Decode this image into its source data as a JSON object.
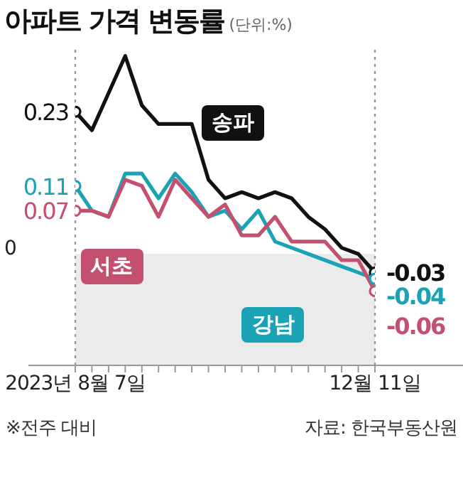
{
  "chart_data": {
    "type": "line",
    "title": "아파트 가격 변동률",
    "subtitle": "(단위:%)",
    "categories": [
      "2023년 8월 7일",
      null,
      null,
      null,
      null,
      null,
      null,
      null,
      null,
      null,
      null,
      null,
      null,
      null,
      null,
      null,
      null,
      null,
      "12월 11일"
    ],
    "series": [
      {
        "name": "송파",
        "color": "#111111",
        "values": [
          0.23,
          0.2,
          0.26,
          0.32,
          0.24,
          0.21,
          0.21,
          0.21,
          0.12,
          0.09,
          0.1,
          0.09,
          0.1,
          0.09,
          0.06,
          0.04,
          0.01,
          0,
          -0.03
        ],
        "value_labels": [
          "0.23",
          null,
          null,
          null,
          null,
          null,
          null,
          null,
          null,
          null,
          null,
          null,
          null,
          null,
          null,
          null,
          null,
          null,
          "-0.03"
        ]
      },
      {
        "name": "강남",
        "color": "#1ba3b5",
        "values": [
          0.11,
          0.07,
          0.06,
          0.13,
          0.13,
          0.09,
          0.13,
          0.1,
          0.06,
          0.07,
          0.04,
          0.07,
          0.02,
          0.01,
          0,
          -0.01,
          -0.02,
          -0.03,
          -0.04
        ],
        "value_labels": [
          "0.11",
          null,
          null,
          null,
          null,
          null,
          null,
          null,
          null,
          null,
          null,
          null,
          null,
          null,
          null,
          null,
          null,
          null,
          "-0.04"
        ]
      },
      {
        "name": "서초",
        "color": "#c4506f",
        "values": [
          0.07,
          0.07,
          0.06,
          0.12,
          0.11,
          0.06,
          0.12,
          0.09,
          0.06,
          0.08,
          0.03,
          0.03,
          0.06,
          0.02,
          0.02,
          0.02,
          -0.01,
          -0.01,
          -0.06
        ],
        "value_labels": [
          "0.07",
          null,
          null,
          null,
          null,
          null,
          null,
          null,
          null,
          null,
          null,
          null,
          null,
          null,
          null,
          null,
          null,
          null,
          "-0.06"
        ]
      }
    ],
    "ylim": [
      -0.18,
      0.33
    ],
    "line_style": "solid",
    "bands": [
      {
        "axis": "y",
        "from": -0.18,
        "to": 0,
        "color": "#ebebeb"
      }
    ],
    "ref_lines": [
      {
        "axis": "x",
        "value": "2023년 8월 7일",
        "line_style": "dotted",
        "color": "#999999"
      },
      {
        "axis": "x",
        "value": "12월 11일",
        "line_style": "dotted",
        "color": "#999999"
      }
    ],
    "annotations": [
      "0",
      "※전주 대비",
      "자료: 한국부동산원"
    ]
  }
}
